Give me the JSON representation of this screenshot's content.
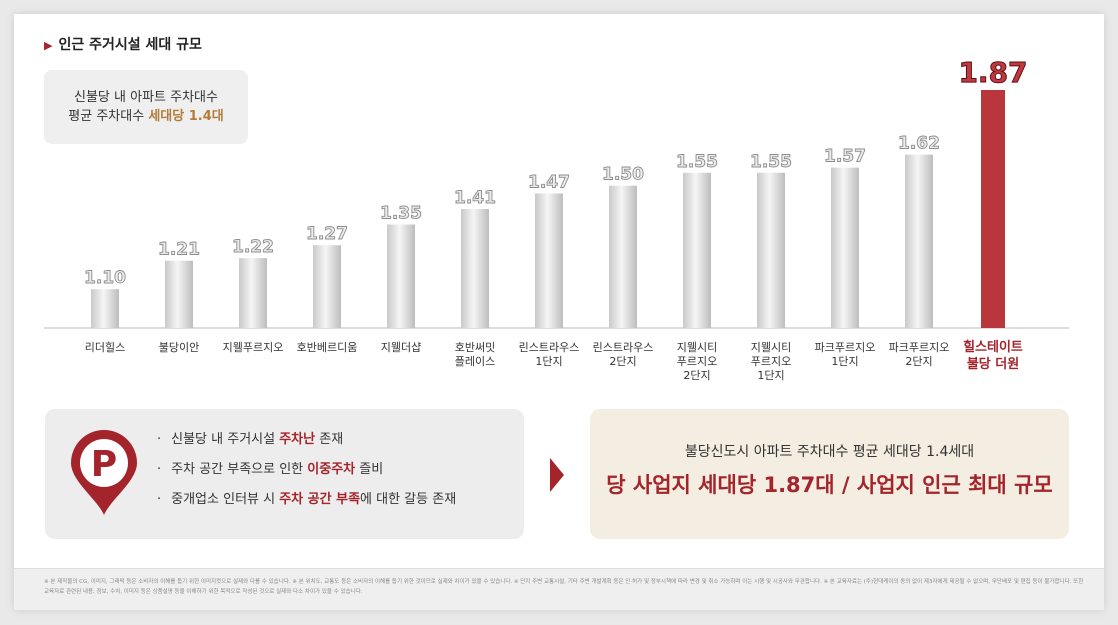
{
  "header": {
    "title": "인근 주거시설 세대 규모"
  },
  "avg_note": {
    "line1": "신불당 내 아파트 주차대수",
    "line2_prefix": "평균 주차대수 ",
    "line2_highlight": "세대당 1.4대"
  },
  "chart_data": {
    "type": "bar",
    "categories": [
      "리더힐스",
      "불당이안",
      "지웰푸르지오",
      "호반베르디움",
      "지웰더샵",
      "호반써밋 플레이스",
      "린스트라우스 1단지",
      "린스트라우스 2단지",
      "지웰시티 푸르지오 2단지",
      "지웰시티 푸르지오 1단지",
      "파크푸르지오 1단지",
      "파크푸르지오 2단지",
      "힐스테이트 불당 더원"
    ],
    "category_lines": [
      [
        "리더힐스"
      ],
      [
        "불당이안"
      ],
      [
        "지웰푸르지오"
      ],
      [
        "호반베르디움"
      ],
      [
        "지웰더샵"
      ],
      [
        "호반써밋",
        "플레이스"
      ],
      [
        "린스트라우스",
        "1단지"
      ],
      [
        "린스트라우스",
        "2단지"
      ],
      [
        "지웰시티",
        "푸르지오",
        "2단지"
      ],
      [
        "지웰시티",
        "푸르지오",
        "1단지"
      ],
      [
        "파크푸르지오",
        "1단지"
      ],
      [
        "파크푸르지오",
        "2단지"
      ],
      [
        "힐스테이트",
        "불당 더원"
      ]
    ],
    "values": [
      1.1,
      1.21,
      1.22,
      1.27,
      1.35,
      1.41,
      1.47,
      1.5,
      1.55,
      1.55,
      1.57,
      1.62,
      1.87
    ],
    "value_labels": [
      "1.10",
      "1.21",
      "1.22",
      "1.27",
      "1.35",
      "1.41",
      "1.47",
      "1.50",
      "1.55",
      "1.55",
      "1.57",
      "1.62",
      "1.87"
    ],
    "highlight_index": 12,
    "ylim": [
      0.95,
      1.87
    ],
    "grid": false,
    "colors": {
      "bar": "#d9d9d9",
      "highlight": "#b8363c",
      "highlight_text": "#a4242b"
    }
  },
  "issues": {
    "items": [
      {
        "prefix": "신불당 내 주거시설 ",
        "highlight": "주차난",
        "suffix": " 존재"
      },
      {
        "prefix": "주차 공간 부족으로 인한 ",
        "highlight": "이중주차",
        "suffix": " 즐비"
      },
      {
        "prefix": "중개업소 인터뷰 시 ",
        "highlight": "주차 공간 부족",
        "suffix": "에 대한 갈등 존재"
      }
    ],
    "icon": "parking-pin-icon",
    "bullet": "·"
  },
  "summary": {
    "line1": "불당신도시 아파트 주차대수 평균 세대당 1.4세대",
    "line2": "당 사업지 세대당 1.87대 / 사업지 인근 최대 규모"
  },
  "footnote": "※ 본 제작물의 CG, 이미지, 그래픽 등은 소비자의 이해를 돕기 위한 이미지컷으로 실제와 다를 수 있습니다. ※ 본 위치도, 교통도 등은 소비자의 이해를 돕기 위한 것이므로 실제와 차이가 있을 수 있습니다. ※ 단지 주변 교통시설, 기타 주변 개발계획 등은 인·허가 및 정부시책에 따라 변경 및 취소 가능하며 이는 시행 및 시공사와 무관합니다. ※ 본 교육자료는 (주)현대케이의 동의 없이 제3자에게 제공될 수 없으며, 무단배포 및 편집 등이 불가합니다. 또한 교육자료 관련된 내용, 정보, 수치, 이미지 등은 상품설명 등을 이해하기 위한 목적으로 작성된 것으로 실제와 다소 차이가 있을 수 있습니다."
}
